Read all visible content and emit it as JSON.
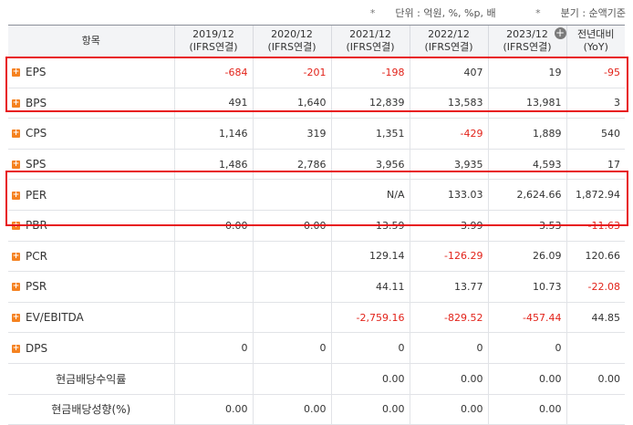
{
  "notes": {
    "unit": "단위 : 억원, %, %p, 배",
    "period": "분기 : 순액기준"
  },
  "headers": {
    "item": "항목",
    "periods": [
      [
        "2019/12",
        "(IFRS연결)"
      ],
      [
        "2020/12",
        "(IFRS연결)"
      ],
      [
        "2021/12",
        "(IFRS연결)"
      ],
      [
        "2022/12",
        "(IFRS연결)"
      ],
      [
        "2023/12",
        "(IFRS연결)"
      ],
      [
        "전년대비",
        "(YoY)"
      ]
    ]
  },
  "rows": [
    {
      "label": "EPS",
      "icon": true,
      "values": [
        "-684",
        "-201",
        "-198",
        "407",
        "19",
        "-95"
      ]
    },
    {
      "label": "BPS",
      "icon": true,
      "values": [
        "491",
        "1,640",
        "12,839",
        "13,583",
        "13,981",
        "3"
      ]
    },
    {
      "label": "CPS",
      "icon": true,
      "values": [
        "1,146",
        "319",
        "1,351",
        "-429",
        "1,889",
        "540"
      ]
    },
    {
      "label": "SPS",
      "icon": true,
      "values": [
        "1,486",
        "2,786",
        "3,956",
        "3,935",
        "4,593",
        "17"
      ]
    },
    {
      "label": "PER",
      "icon": true,
      "values": [
        "",
        "",
        "N/A",
        "133.03",
        "2,624.66",
        "1,872.94"
      ]
    },
    {
      "label": "PBR",
      "icon": true,
      "values": [
        "0.00",
        "0.00",
        "13.59",
        "3.99",
        "3.53",
        "-11.63"
      ]
    },
    {
      "label": "PCR",
      "icon": true,
      "values": [
        "",
        "",
        "129.14",
        "-126.29",
        "26.09",
        "120.66"
      ]
    },
    {
      "label": "PSR",
      "icon": true,
      "values": [
        "",
        "",
        "44.11",
        "13.77",
        "10.73",
        "-22.08"
      ]
    },
    {
      "label": "EV/EBITDA",
      "icon": true,
      "values": [
        "",
        "",
        "-2,759.16",
        "-829.52",
        "-457.44",
        "44.85"
      ]
    },
    {
      "label": "DPS",
      "icon": true,
      "values": [
        "0",
        "0",
        "0",
        "0",
        "0",
        ""
      ]
    },
    {
      "label": "현금배당수익률",
      "icon": false,
      "values": [
        "",
        "",
        "0.00",
        "0.00",
        "0.00",
        "0.00"
      ]
    },
    {
      "label": "현금배당성향(%)",
      "icon": false,
      "values": [
        "0.00",
        "0.00",
        "0.00",
        "0.00",
        "0.00",
        ""
      ]
    }
  ],
  "colors": {
    "negative": "#e2231a",
    "highlight": "#e8151b",
    "expand_icon": "#f58220"
  },
  "icons": {
    "expand_row": "plus-square-icon",
    "add_column": "plus-circle-icon"
  }
}
